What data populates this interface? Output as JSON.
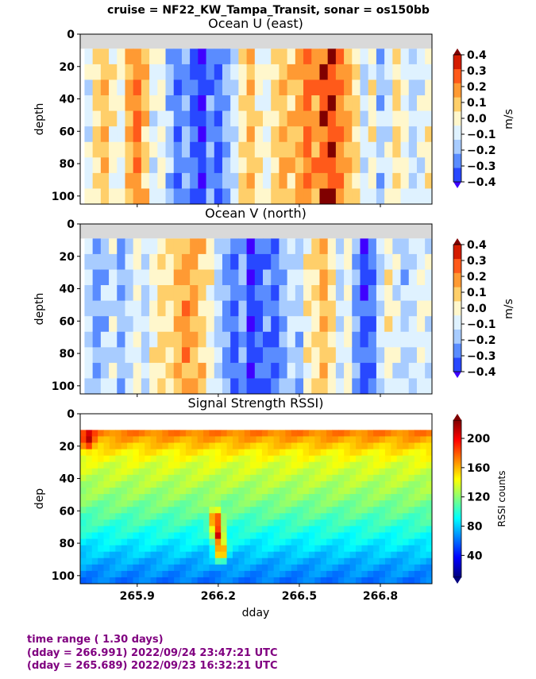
{
  "suptitle": "cruise = NF22_KW_Tampa_Transit,  sonar = os150bb",
  "chart_data": [
    {
      "type": "heatmap",
      "title": "Ocean U (east)",
      "ylabel": "depth",
      "xlabel": "",
      "xlim": [
        265.689,
        266.991
      ],
      "ylim": [
        105,
        0
      ],
      "yticks": [
        "0",
        "20",
        "40",
        "60",
        "80",
        "100"
      ],
      "colorbar": {
        "label": "m/s",
        "ticks": [
          "0.4",
          "0.3",
          "0.2",
          "0.1",
          "0.0",
          "−0.1",
          "−0.2",
          "−0.3",
          "−0.4"
        ],
        "range": [
          -0.4,
          0.4
        ]
      },
      "columns": [
        {
          "x": 265.72,
          "v": -0.05
        },
        {
          "x": 265.75,
          "v": 0.12
        },
        {
          "x": 265.78,
          "v": 0.18
        },
        {
          "x": 265.81,
          "v": 0.05
        },
        {
          "x": 265.84,
          "v": -0.02
        },
        {
          "x": 265.87,
          "v": 0.22
        },
        {
          "x": 265.9,
          "v": 0.3
        },
        {
          "x": 265.93,
          "v": 0.15
        },
        {
          "x": 265.96,
          "v": -0.05
        },
        {
          "x": 265.99,
          "v": 0.02
        },
        {
          "x": 266.02,
          "v": -0.15
        },
        {
          "x": 266.05,
          "v": -0.28
        },
        {
          "x": 266.08,
          "v": -0.2
        },
        {
          "x": 266.11,
          "v": -0.32
        },
        {
          "x": 266.14,
          "v": -0.38
        },
        {
          "x": 266.17,
          "v": -0.25
        },
        {
          "x": 266.2,
          "v": -0.3
        },
        {
          "x": 266.23,
          "v": -0.18
        },
        {
          "x": 266.26,
          "v": -0.08
        },
        {
          "x": 266.29,
          "v": 0.1
        },
        {
          "x": 266.32,
          "v": 0.18
        },
        {
          "x": 266.35,
          "v": 0.05
        },
        {
          "x": 266.38,
          "v": -0.03
        },
        {
          "x": 266.41,
          "v": 0.12
        },
        {
          "x": 266.44,
          "v": 0.18
        },
        {
          "x": 266.47,
          "v": 0.15
        },
        {
          "x": 266.5,
          "v": 0.22
        },
        {
          "x": 266.53,
          "v": 0.32
        },
        {
          "x": 266.56,
          "v": 0.25
        },
        {
          "x": 266.59,
          "v": 0.35
        },
        {
          "x": 266.62,
          "v": 0.38
        },
        {
          "x": 266.65,
          "v": 0.28
        },
        {
          "x": 266.68,
          "v": 0.2
        },
        {
          "x": 266.71,
          "v": 0.12
        },
        {
          "x": 266.74,
          "v": -0.08
        },
        {
          "x": 266.77,
          "v": 0.05
        },
        {
          "x": 266.8,
          "v": -0.15
        },
        {
          "x": 266.83,
          "v": -0.05
        },
        {
          "x": 266.86,
          "v": 0.1
        },
        {
          "x": 266.89,
          "v": 0.02
        },
        {
          "x": 266.92,
          "v": -0.12
        },
        {
          "x": 266.95,
          "v": -0.05
        },
        {
          "x": 266.98,
          "v": 0.04
        }
      ]
    },
    {
      "type": "heatmap",
      "title": "Ocean V (north)",
      "ylabel": "depth",
      "xlabel": "",
      "xlim": [
        265.689,
        266.991
      ],
      "ylim": [
        105,
        0
      ],
      "yticks": [
        "0",
        "20",
        "40",
        "60",
        "80",
        "100"
      ],
      "colorbar": {
        "label": "m/s",
        "ticks": [
          "0.4",
          "0.3",
          "0.2",
          "0.1",
          "0.0",
          "−0.1",
          "−0.2",
          "−0.3",
          "−0.4"
        ],
        "range": [
          -0.4,
          0.4
        ]
      },
      "columns": [
        {
          "x": 265.72,
          "v": -0.1
        },
        {
          "x": 265.75,
          "v": -0.22
        },
        {
          "x": 265.78,
          "v": -0.15
        },
        {
          "x": 265.81,
          "v": -0.05
        },
        {
          "x": 265.84,
          "v": -0.18
        },
        {
          "x": 265.87,
          "v": -0.08
        },
        {
          "x": 265.9,
          "v": 0.02
        },
        {
          "x": 265.93,
          "v": -0.12
        },
        {
          "x": 265.96,
          "v": 0.05
        },
        {
          "x": 265.99,
          "v": 0.12
        },
        {
          "x": 266.02,
          "v": 0.08
        },
        {
          "x": 266.05,
          "v": 0.18
        },
        {
          "x": 266.08,
          "v": 0.25
        },
        {
          "x": 266.11,
          "v": 0.22
        },
        {
          "x": 266.14,
          "v": 0.15
        },
        {
          "x": 266.17,
          "v": 0.05
        },
        {
          "x": 266.2,
          "v": -0.12
        },
        {
          "x": 266.23,
          "v": -0.22
        },
        {
          "x": 266.26,
          "v": -0.3
        },
        {
          "x": 266.29,
          "v": -0.2
        },
        {
          "x": 266.32,
          "v": -0.38
        },
        {
          "x": 266.35,
          "v": -0.32
        },
        {
          "x": 266.38,
          "v": -0.25
        },
        {
          "x": 266.41,
          "v": -0.3
        },
        {
          "x": 266.44,
          "v": -0.18
        },
        {
          "x": 266.47,
          "v": -0.08
        },
        {
          "x": 266.5,
          "v": -0.15
        },
        {
          "x": 266.53,
          "v": 0.05
        },
        {
          "x": 266.56,
          "v": 0.1
        },
        {
          "x": 266.59,
          "v": 0.18
        },
        {
          "x": 266.62,
          "v": 0.08
        },
        {
          "x": 266.65,
          "v": -0.1
        },
        {
          "x": 266.68,
          "v": 0.02
        },
        {
          "x": 266.71,
          "v": -0.2
        },
        {
          "x": 266.74,
          "v": -0.35
        },
        {
          "x": 266.77,
          "v": -0.28
        },
        {
          "x": 266.8,
          "v": -0.12
        },
        {
          "x": 266.83,
          "v": 0.05
        },
        {
          "x": 266.86,
          "v": -0.05
        },
        {
          "x": 266.89,
          "v": -0.15
        },
        {
          "x": 266.92,
          "v": -0.08
        },
        {
          "x": 266.95,
          "v": -0.02
        },
        {
          "x": 266.98,
          "v": -0.06
        }
      ]
    },
    {
      "type": "heatmap",
      "title": "Signal Strength RSSI)",
      "ylabel": "dep",
      "xlabel": "dday",
      "xlim": [
        265.689,
        266.991
      ],
      "ylim": [
        105,
        0
      ],
      "yticks": [
        "0",
        "20",
        "40",
        "60",
        "80",
        "100"
      ],
      "xticks": [
        {
          "value": 265.9,
          "label": "265.9"
        },
        {
          "value": 266.2,
          "label": "266.2"
        },
        {
          "value": 266.5,
          "label": "266.5"
        },
        {
          "value": 266.8,
          "label": "266.8"
        }
      ],
      "colorbar": {
        "label": "RSSI counts",
        "ticks": [
          "200",
          "160",
          "120",
          "80",
          "40"
        ],
        "range": [
          10,
          225
        ]
      },
      "depth_profile": [
        {
          "depth": 10,
          "rssi": 175
        },
        {
          "depth": 15,
          "rssi": 165
        },
        {
          "depth": 20,
          "rssi": 155
        },
        {
          "depth": 25,
          "rssi": 145
        },
        {
          "depth": 30,
          "rssi": 138
        },
        {
          "depth": 40,
          "rssi": 130
        },
        {
          "depth": 50,
          "rssi": 122
        },
        {
          "depth": 60,
          "rssi": 112
        },
        {
          "depth": 70,
          "rssi": 100
        },
        {
          "depth": 80,
          "rssi": 88
        },
        {
          "depth": 90,
          "rssi": 75
        },
        {
          "depth": 100,
          "rssi": 65
        },
        {
          "depth": 105,
          "rssi": 60
        }
      ],
      "features": [
        {
          "x": 265.72,
          "depth": 15,
          "rssi": 215
        },
        {
          "x": 266.19,
          "depth": 65,
          "rssi": 200
        },
        {
          "x": 266.2,
          "depth": 75,
          "rssi": 210
        },
        {
          "x": 266.21,
          "depth": 85,
          "rssi": 190
        }
      ]
    }
  ],
  "footer": {
    "line1": "time range ( 1.30 days)",
    "line2": "(dday = 266.991) 2022/09/24 23:47:21 UTC",
    "line3": "(dday = 265.689) 2022/09/23 16:32:21 UTC"
  }
}
